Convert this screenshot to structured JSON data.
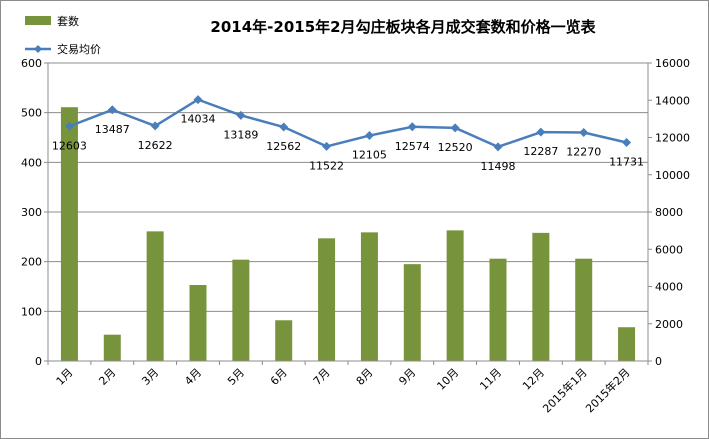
{
  "chart_data": {
    "type": "bar",
    "title": "2014年-2015年2月勾庄板块各月成交套数和价格一览表",
    "categories": [
      "1月",
      "2月",
      "3月",
      "4月",
      "5月",
      "6月",
      "7月",
      "8月",
      "9月",
      "10月",
      "11月",
      "12月",
      "2015年1月",
      "2015年2月"
    ],
    "series": [
      {
        "name": "套数",
        "type": "bar",
        "axis": "left",
        "color": "#77933c",
        "values": [
          511,
          53,
          261,
          153,
          204,
          82,
          247,
          259,
          195,
          263,
          206,
          258,
          206,
          68
        ]
      },
      {
        "name": "交易均价",
        "type": "line",
        "axis": "right",
        "color": "#4a7ebb",
        "values": [
          12603,
          13487,
          12622,
          14034,
          13189,
          12562,
          11522,
          12105,
          12574,
          12520,
          11498,
          12287,
          12270,
          11731
        ],
        "data_labels": [
          "12603",
          "13487",
          "12622",
          "14034",
          "13189",
          "12562",
          "11522",
          "12105",
          "12574",
          "12520",
          "11498",
          "12287",
          "12270",
          "11731"
        ]
      }
    ],
    "y_left": {
      "ylim": [
        0,
        600
      ],
      "ticks": [
        "0",
        "100",
        "200",
        "300",
        "400",
        "500",
        "600"
      ]
    },
    "y_right": {
      "ylim": [
        0,
        16000
      ],
      "ticks": [
        "0",
        "2000",
        "4000",
        "6000",
        "8000",
        "10000",
        "12000",
        "14000",
        "16000"
      ]
    },
    "grid": true,
    "legend_position": "top-left"
  }
}
